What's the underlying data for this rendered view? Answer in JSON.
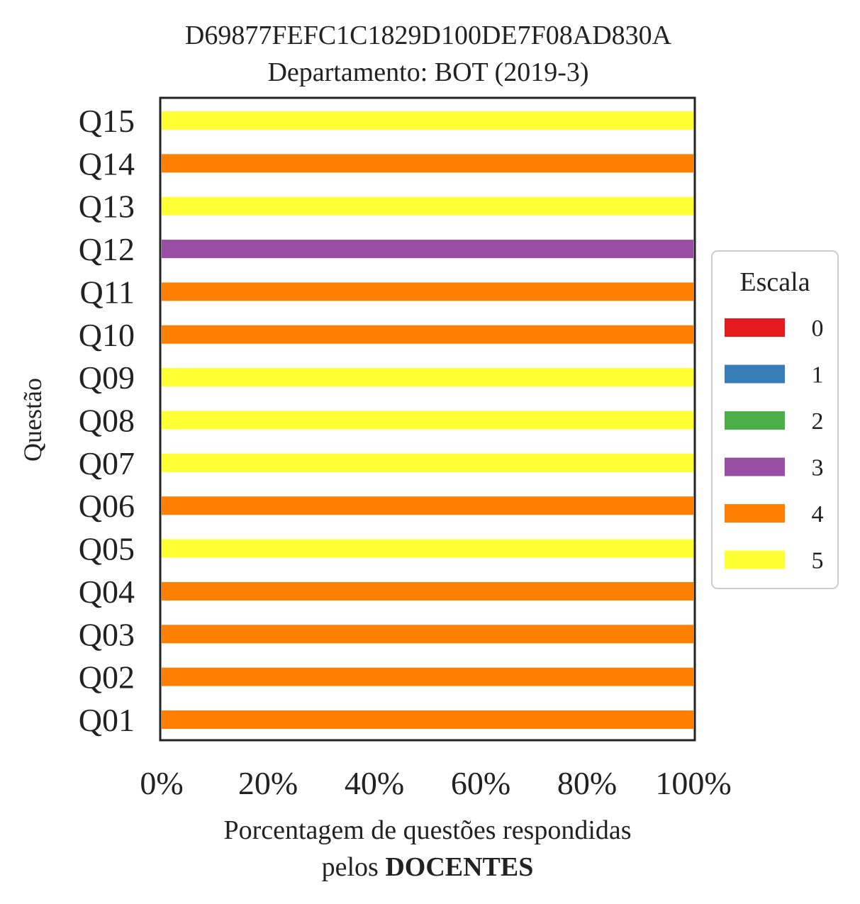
{
  "chart_data": {
    "type": "bar",
    "orientation": "horizontal",
    "stacked": true,
    "title": "D69877FEFC1C1829D100DE7F08AD830A",
    "subtitle": "Departamento: BOT (2019-3)",
    "xlabel_line1": "Porcentagem de questões respondidas",
    "xlabel_line2_prefix": "pelos ",
    "xlabel_line2_bold": "DOCENTES",
    "ylabel": "Questão",
    "xlim": [
      0,
      100
    ],
    "x_ticks": [
      "0%",
      "20%",
      "40%",
      "60%",
      "80%",
      "100%"
    ],
    "categories": [
      "Q01",
      "Q02",
      "Q03",
      "Q04",
      "Q05",
      "Q06",
      "Q07",
      "Q08",
      "Q09",
      "Q10",
      "Q11",
      "Q12",
      "Q13",
      "Q14",
      "Q15"
    ],
    "legend_title": "Escala",
    "legend_position": "right",
    "grid": false,
    "series": [
      {
        "name": "0",
        "color": "#e41a1c",
        "values": [
          0,
          0,
          0,
          0,
          0,
          0,
          0,
          0,
          0,
          0,
          0,
          0,
          0,
          0,
          0
        ]
      },
      {
        "name": "1",
        "color": "#377eb8",
        "values": [
          0,
          0,
          0,
          0,
          0,
          0,
          0,
          0,
          0,
          0,
          0,
          0,
          0,
          0,
          0
        ]
      },
      {
        "name": "2",
        "color": "#4daf4a",
        "values": [
          0,
          0,
          0,
          0,
          0,
          0,
          0,
          0,
          0,
          0,
          0,
          0,
          0,
          0,
          0
        ]
      },
      {
        "name": "3",
        "color": "#984ea3",
        "values": [
          0,
          0,
          0,
          0,
          0,
          0,
          0,
          0,
          0,
          0,
          0,
          100,
          0,
          0,
          0
        ]
      },
      {
        "name": "4",
        "color": "#ff7f00",
        "values": [
          100,
          100,
          100,
          100,
          0,
          100,
          0,
          0,
          0,
          100,
          100,
          0,
          0,
          100,
          0
        ]
      },
      {
        "name": "5",
        "color": "#ffff33",
        "values": [
          0,
          0,
          0,
          0,
          100,
          0,
          100,
          100,
          100,
          0,
          0,
          0,
          100,
          0,
          100
        ]
      }
    ]
  }
}
